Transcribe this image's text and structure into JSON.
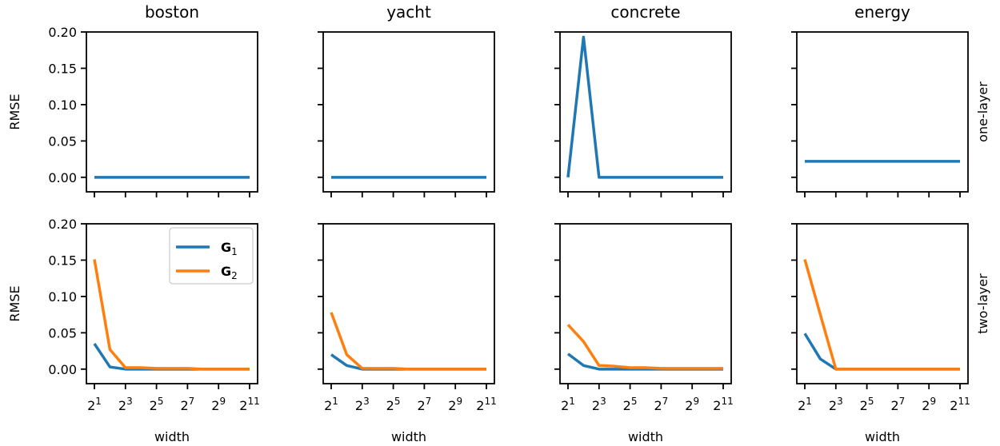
{
  "chart_data": {
    "type": "line",
    "layout": "2x4 grid of subplots, shared axes",
    "columns": [
      "boston",
      "yacht",
      "concrete",
      "energy"
    ],
    "rows": [
      "one-layer",
      "two-layer"
    ],
    "xlabel": "width",
    "ylabel": "RMSE",
    "x_scale": "log2",
    "x_tick_labels": [
      "2^1",
      "2^3",
      "2^5",
      "2^7",
      "2^9",
      "2^11"
    ],
    "x_tick_values": [
      2,
      8,
      32,
      128,
      512,
      2048
    ],
    "x": [
      2,
      4,
      8,
      16,
      32,
      64,
      128,
      256,
      512,
      1024,
      2048
    ],
    "ylim": [
      -0.02,
      0.2
    ],
    "y_ticks": [
      "0.00",
      "0.05",
      "0.10",
      "0.15",
      "0.20"
    ],
    "y_tick_values": [
      0.0,
      0.05,
      0.1,
      0.15,
      0.2
    ],
    "grid": false,
    "legend": {
      "location": "upper-right of first two-layer panel",
      "entries": [
        "G1",
        "G2"
      ]
    },
    "colors": {
      "G1": "#1f77b4",
      "G2": "#ff7f0e"
    },
    "panels": [
      {
        "row": "one-layer",
        "column": "boston",
        "series": [
          {
            "name": "G1",
            "values": [
              0,
              0,
              0,
              0,
              0,
              0,
              0,
              0,
              0,
              0,
              0
            ]
          }
        ]
      },
      {
        "row": "one-layer",
        "column": "yacht",
        "series": [
          {
            "name": "G1",
            "values": [
              0,
              0,
              0,
              0,
              0,
              0,
              0,
              0,
              0,
              0,
              0
            ]
          }
        ]
      },
      {
        "row": "one-layer",
        "column": "concrete",
        "series": [
          {
            "name": "G1",
            "values": [
              0,
              0.193,
              0,
              0,
              0,
              0,
              0,
              0,
              0,
              0,
              0
            ]
          }
        ]
      },
      {
        "row": "one-layer",
        "column": "energy",
        "series": [
          {
            "name": "G1",
            "values": [
              0.022,
              0.022,
              0.022,
              0.022,
              0.022,
              0.022,
              0.022,
              0.022,
              0.022,
              0.022,
              0.022
            ]
          }
        ]
      },
      {
        "row": "two-layer",
        "column": "boston",
        "series": [
          {
            "name": "G1",
            "values": [
              0.035,
              0.003,
              0.0,
              0.0,
              0.0,
              0.0,
              0.0,
              0.0,
              0.0,
              0.0,
              0.0
            ]
          },
          {
            "name": "G2",
            "values": [
              0.151,
              0.027,
              0.002,
              0.002,
              0.001,
              0.001,
              0.001,
              0.0,
              0.0,
              0.0,
              0.0
            ]
          }
        ]
      },
      {
        "row": "two-layer",
        "column": "yacht",
        "series": [
          {
            "name": "G1",
            "values": [
              0.02,
              0.005,
              0.0,
              0.0,
              0.0,
              0.0,
              0.0,
              0.0,
              0.0,
              0.0,
              0.0
            ]
          },
          {
            "name": "G2",
            "values": [
              0.078,
              0.02,
              0.001,
              0.001,
              0.001,
              0.0,
              0.0,
              0.0,
              0.0,
              0.0,
              0.0
            ]
          }
        ]
      },
      {
        "row": "two-layer",
        "column": "concrete",
        "series": [
          {
            "name": "G1",
            "values": [
              0.021,
              0.005,
              0.0,
              0.0,
              0.0,
              0.0,
              0.0,
              0.0,
              0.0,
              0.0,
              0.0
            ]
          },
          {
            "name": "G2",
            "values": [
              0.061,
              0.038,
              0.005,
              0.004,
              0.002,
              0.002,
              0.001,
              0.001,
              0.001,
              0.001,
              0.001
            ]
          }
        ]
      },
      {
        "row": "two-layer",
        "column": "energy",
        "series": [
          {
            "name": "G1",
            "values": [
              0.049,
              0.014,
              0.0,
              0.0,
              0.0,
              0.0,
              0.0,
              0.0,
              0.0,
              0.0,
              0.0
            ]
          },
          {
            "name": "G2",
            "values": [
              0.151,
              0.075,
              0.0,
              0.0,
              0.0,
              0.0,
              0.0,
              0.0,
              0.0,
              0.0,
              0.0
            ]
          }
        ]
      }
    ]
  }
}
